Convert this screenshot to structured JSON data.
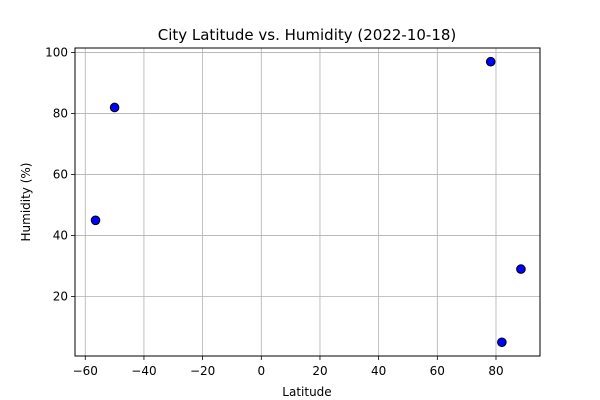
{
  "chart_data": {
    "type": "scatter",
    "title": "City Latitude vs. Humidity (2022-10-18)",
    "xlabel": "Latitude",
    "ylabel": "Humidity (%)",
    "xlim": [
      -63.5,
      95
    ],
    "ylim": [
      0.5,
      101.5
    ],
    "xticks": [
      -60,
      -40,
      -20,
      0,
      20,
      40,
      60,
      80
    ],
    "yticks": [
      20,
      40,
      60,
      80,
      100
    ],
    "grid": true,
    "legend": "none",
    "marker_fill": "#0000ff",
    "marker_edge": "#000000",
    "grid_color": "#b0b0b0",
    "points": [
      {
        "x": -56.5,
        "y": 45
      },
      {
        "x": -50.0,
        "y": 82
      },
      {
        "x": 78.2,
        "y": 97
      },
      {
        "x": 82.0,
        "y": 5
      },
      {
        "x": 88.5,
        "y": 29
      }
    ]
  }
}
